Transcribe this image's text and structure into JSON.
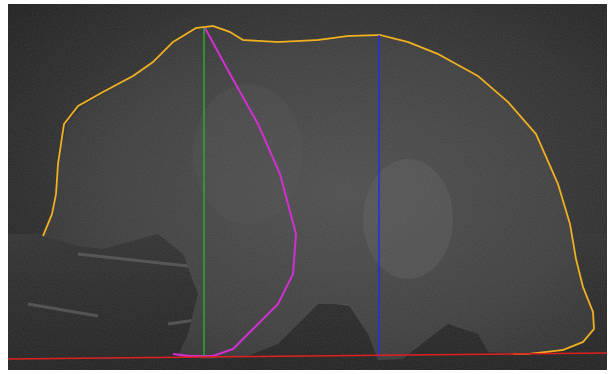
{
  "image": {
    "subject": "bear-silhouette",
    "scene": "night-trail-camera",
    "colors": {
      "background": "#ffffff",
      "outline": "#f0b020",
      "chest_curve": "#d030d0",
      "front_height_line": "#22b022",
      "rear_height_line": "#2030e0",
      "ground_line": "#e02020"
    }
  }
}
